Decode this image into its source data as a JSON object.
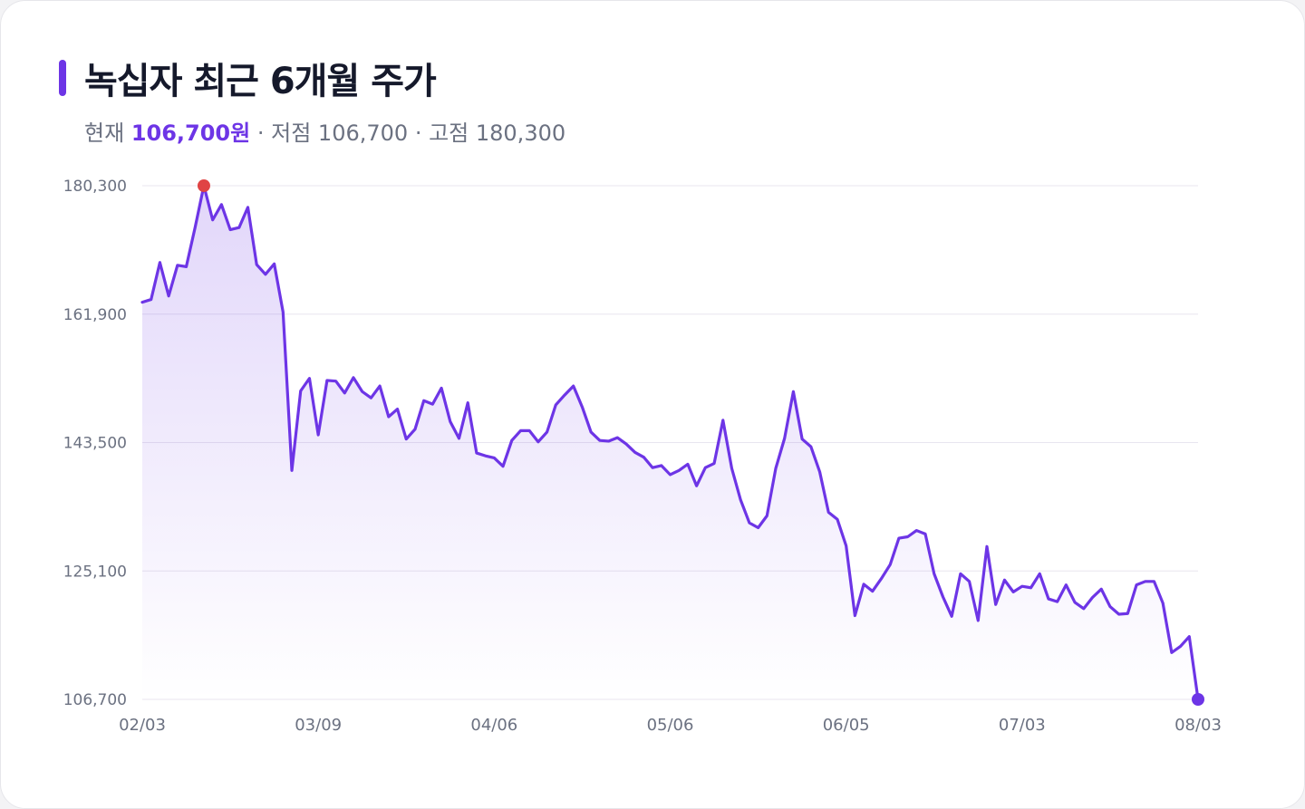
{
  "title": "녹십자 최근 6개월 주가",
  "summary": {
    "current_label": "현재",
    "current_value": "106,700원",
    "low_label": "· 저점",
    "low_value": "106,700",
    "high_label": "· 고점",
    "high_value": "180,300"
  },
  "colors": {
    "accent": "#6d35e6",
    "high_marker": "#e04444",
    "grid": "#e8e6ef",
    "tick_text": "#6b7181"
  },
  "chart_data": {
    "type": "area",
    "title": "녹십자 최근 6개월 주가",
    "xlabel": "",
    "ylabel": "",
    "ylim": [
      106700,
      180300
    ],
    "y_ticks": [
      180300,
      161900,
      143500,
      125100,
      106700
    ],
    "y_tick_labels": [
      "180,300",
      "161,900",
      "143,500",
      "125,100",
      "106,700"
    ],
    "x_tick_labels": [
      "02/03",
      "03/09",
      "04/06",
      "05/06",
      "06/05",
      "07/03",
      "08/03"
    ],
    "x_tick_index": [
      0,
      20,
      40,
      60,
      80,
      100,
      120
    ],
    "grid": true,
    "legend": "none",
    "markers": {
      "high_index": 7,
      "last_index": 120
    },
    "series": [
      {
        "values": [
          163600,
          164000,
          169300,
          164500,
          168900,
          168700,
          174300,
          180300,
          175400,
          177600,
          174000,
          174300,
          177200,
          169000,
          167600,
          169100,
          162200,
          139500,
          150900,
          152700,
          144600,
          152400,
          152300,
          150600,
          152800,
          150800,
          149900,
          151600,
          147200,
          148300,
          144000,
          145400,
          149500,
          149000,
          151300,
          146500,
          144100,
          149200,
          142000,
          141600,
          141300,
          140100,
          143800,
          145200,
          145200,
          143600,
          145000,
          148900,
          150300,
          151600,
          148600,
          145000,
          143800,
          143700,
          144200,
          143300,
          142100,
          141400,
          139900,
          140200,
          138900,
          139500,
          140400,
          137300,
          139900,
          140500,
          146700,
          139800,
          135300,
          132000,
          131300,
          133000,
          139800,
          144100,
          150800,
          144000,
          142900,
          139300,
          133500,
          132500,
          128700,
          118700,
          123200,
          122200,
          124000,
          126000,
          129800,
          130000,
          130900,
          130400,
          124700,
          121400,
          118600,
          124700,
          123600,
          118000,
          128600,
          120300,
          123800,
          122100,
          122900,
          122700,
          124700,
          121100,
          120700,
          123100,
          120600,
          119700,
          121300,
          122500,
          120000,
          118900,
          119000,
          123100,
          123600,
          123600,
          120500,
          113400,
          114300,
          115700,
          106700
        ]
      }
    ]
  }
}
